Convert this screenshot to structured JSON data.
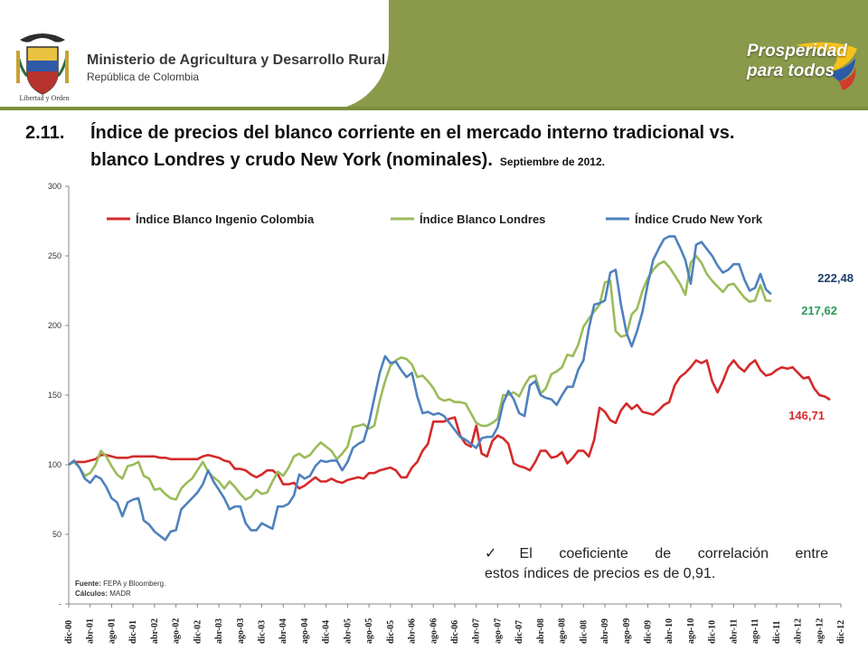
{
  "header": {
    "ministry": "Ministerio de Agricultura y Desarrollo Rural",
    "republic": "República de Colombia",
    "motto": "Libertad y Orden",
    "brand_line1": "Prosperidad",
    "brand_line2": "para todos",
    "bar_color": "#8a9a4a"
  },
  "title": {
    "number": "2.11.",
    "line1": "Índice de precios del blanco corriente en el mercado interno tradicional vs.",
    "line2": "blanco Londres y crudo New York (nominales).",
    "date": "Septiembre de 2012."
  },
  "note": {
    "line1": "El coeficiente de correlación entre",
    "line2": "estos índices de precios es de 0,91."
  },
  "source": {
    "fuente_label": "Fuente:",
    "fuente_value": "FEPA y Bloomberg.",
    "calculos_label": "Cálculos:",
    "calculos_value": "MADR"
  },
  "chart_data": {
    "type": "line",
    "x_start": "dic-00",
    "x_step_months": 1,
    "ylim": [
      0,
      300
    ],
    "y_ticks": [
      "-",
      "50",
      "100",
      "150",
      "200",
      "250",
      "300"
    ],
    "grid": false,
    "legend_position": "top",
    "x_tick_labels": [
      "dic-00",
      "abr-01",
      "ago-01",
      "dic-01",
      "abr-02",
      "ago-02",
      "dic-02",
      "abr-03",
      "ago-03",
      "dic-03",
      "abr-04",
      "ago-04",
      "dic-04",
      "abr-05",
      "ago-05",
      "dic-05",
      "abr-06",
      "ago-06",
      "dic-06",
      "abr-07",
      "ago-07",
      "dic-07",
      "abr-08",
      "ago-08",
      "dic-08",
      "abr-09",
      "ago-09",
      "dic-09",
      "abr-10",
      "ago-10",
      "dic-10",
      "abr-11",
      "ago-11",
      "dic-11",
      "abr-12",
      "ago-12",
      "dic-12"
    ],
    "series": [
      {
        "name": "Índice Blanco Ingenio Colombia",
        "color": "#d42a2a",
        "end_label": "146,71",
        "values": [
          100,
          102,
          102,
          102,
          103,
          104,
          107,
          107,
          106,
          105,
          105,
          105,
          106,
          106,
          106,
          106,
          106,
          105,
          105,
          104,
          104,
          104,
          104,
          104,
          104,
          106,
          107,
          106,
          105,
          103,
          102,
          97,
          97,
          96,
          93,
          91,
          93,
          96,
          96,
          93,
          86,
          86,
          87,
          83,
          85,
          88,
          91,
          88,
          88,
          90,
          88,
          87,
          89,
          90,
          91,
          90,
          94,
          94,
          96,
          97,
          98,
          96,
          91,
          91,
          98,
          102,
          110,
          115,
          131,
          131,
          131,
          133,
          134,
          121,
          115,
          113,
          128,
          108,
          106,
          117,
          121,
          119,
          115,
          101,
          99,
          98,
          96,
          102,
          110,
          110,
          105,
          106,
          109,
          101,
          105,
          110,
          110,
          106,
          118,
          141,
          138,
          132,
          130,
          139,
          144,
          140,
          143,
          138,
          137,
          136,
          139,
          143,
          145,
          157,
          163,
          166,
          170,
          175,
          173,
          175,
          160,
          152,
          160,
          170,
          175,
          170,
          167,
          172,
          175,
          168,
          164,
          165,
          168,
          170,
          169,
          170,
          166,
          162,
          163,
          155,
          150,
          149,
          146.71
        ]
      },
      {
        "name": "Índice Blanco Londres",
        "color": "#9bbb59",
        "end_label": "",
        "values": [
          100,
          102,
          98,
          92,
          94,
          100,
          110,
          106,
          99,
          93,
          90,
          99,
          100,
          102,
          92,
          90,
          82,
          83,
          79,
          76,
          75,
          83,
          87,
          90,
          96,
          102,
          95,
          91,
          88,
          83,
          88,
          84,
          79,
          75,
          77,
          82,
          79,
          80,
          88,
          95,
          92,
          98,
          106,
          108,
          105,
          107,
          112,
          116,
          113,
          110,
          104,
          108,
          113,
          127,
          128,
          129,
          126,
          128,
          146,
          160,
          171,
          175,
          177,
          176,
          172,
          163,
          164,
          160,
          155,
          148,
          146,
          147,
          145,
          145,
          144,
          137,
          130,
          128,
          128,
          130,
          133,
          150,
          150,
          152,
          149,
          157,
          163,
          164,
          151,
          155,
          165,
          167,
          170,
          179,
          178,
          186,
          199,
          205,
          210,
          215,
          231,
          232,
          196,
          192,
          193,
          208,
          212,
          225,
          234,
          240,
          244,
          246,
          242,
          236,
          230,
          222,
          245,
          250,
          245,
          237,
          232,
          228,
          224,
          229,
          230,
          225,
          220,
          217,
          218,
          229,
          218,
          217.62
        ]
      },
      {
        "name": "Índice Crudo New York",
        "color": "#4f81bd",
        "end_label": "222,48",
        "values": [
          100,
          103,
          98,
          90,
          87,
          92,
          90,
          84,
          76,
          73,
          63,
          73,
          75,
          76,
          60,
          57,
          52,
          49,
          46,
          52,
          53,
          68,
          72,
          76,
          80,
          86,
          96,
          88,
          82,
          76,
          68,
          70,
          70,
          58,
          53,
          53,
          58,
          56,
          54,
          70,
          70,
          72,
          78,
          93,
          90,
          92,
          99,
          103,
          102,
          103,
          103,
          96,
          102,
          112,
          115,
          117,
          130,
          148,
          166,
          178,
          173,
          174,
          168,
          163,
          166,
          149,
          137,
          138,
          136,
          137,
          135,
          130,
          125,
          120,
          118,
          115,
          112,
          119,
          120,
          120,
          127,
          144,
          153,
          147,
          137,
          135,
          157,
          160,
          150,
          148,
          147,
          143,
          150,
          156,
          156,
          168,
          175,
          198,
          215,
          216,
          218,
          238,
          240,
          215,
          195,
          185,
          196,
          210,
          230,
          247,
          255,
          262,
          264,
          264,
          256,
          247,
          230,
          258,
          260,
          255,
          250,
          243,
          238,
          240,
          244,
          244,
          233,
          225,
          227,
          237,
          226,
          222.48
        ]
      }
    ]
  },
  "chart_end_labels": {
    "blue": "222,48",
    "green": "217,62",
    "red": "146,71"
  }
}
